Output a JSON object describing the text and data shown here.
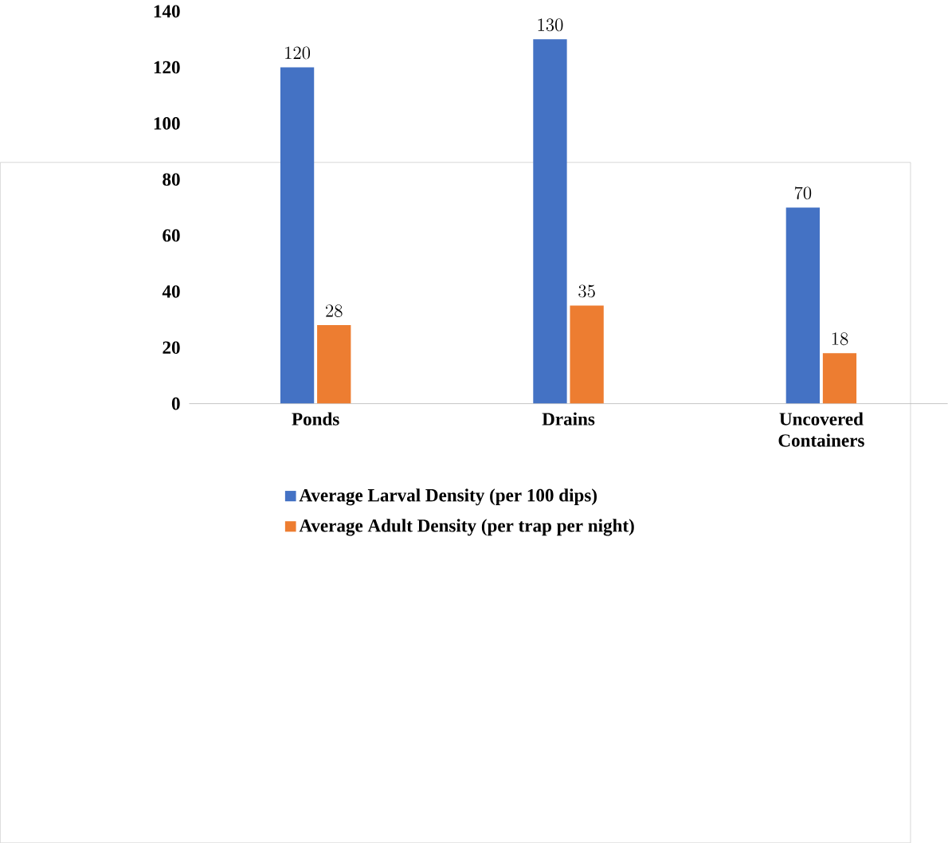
{
  "chart_data": {
    "type": "bar",
    "categories": [
      "Ponds",
      "Drains",
      "Uncovered Containers"
    ],
    "series": [
      {
        "name": "Average Larval Density (per 100 dips)",
        "color": "#4472c4",
        "values": [
          120,
          130,
          70
        ]
      },
      {
        "name": "Average Adult Density (per trap per night)",
        "color": "#ed7d31",
        "values": [
          28,
          35,
          18
        ]
      }
    ],
    "ylim": [
      0,
      140
    ],
    "yticks": [
      0,
      20,
      40,
      60,
      80,
      100,
      120,
      140
    ],
    "data_labels": true,
    "legend": "bottom"
  }
}
